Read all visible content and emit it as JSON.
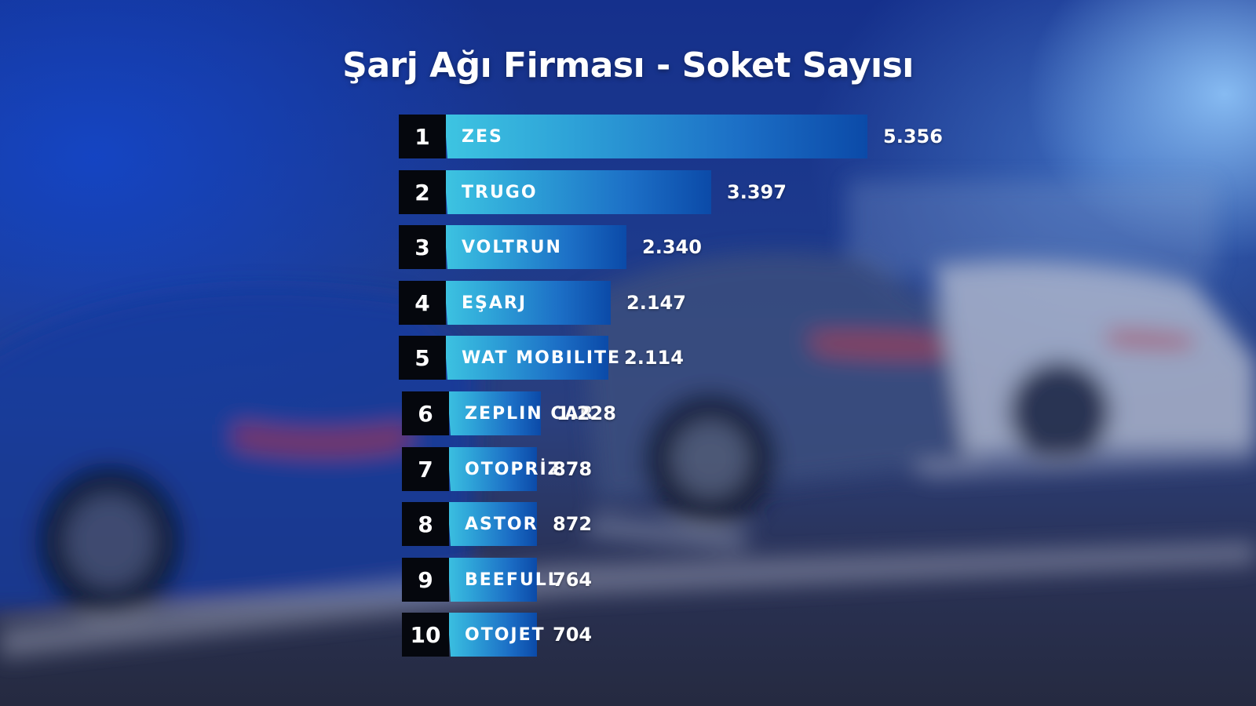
{
  "title": "Şarj Ağı Firması - Soket Sayısı",
  "colors": {
    "bar_start": "#3ec6e2",
    "bar_end": "#0b4aa8",
    "rank_bg": "#05070d",
    "text": "#ffffff"
  },
  "chart_data": {
    "type": "bar",
    "orientation": "horizontal",
    "title": "Şarj Ağı Firması - Soket Sayısı",
    "ranks": [
      "1",
      "2",
      "3",
      "4",
      "5",
      "6",
      "7",
      "8",
      "9",
      "10"
    ],
    "categories": [
      "ZES",
      "TRUGO",
      "VOLTRUN",
      "EŞARJ",
      "WAT MOBILITE",
      "ZEPLIN CAR",
      "OTOPRİZ",
      "ASTOR",
      "BEEFULL",
      "OTOJET"
    ],
    "values": [
      5356,
      3397,
      2340,
      2147,
      2114,
      1228,
      878,
      872,
      764,
      704
    ],
    "value_labels": [
      "5.356",
      "3.397",
      "2.340",
      "2.147",
      "2.114",
      "1.228",
      "878",
      "872",
      "764",
      "704"
    ],
    "grid": false,
    "legend": "none"
  }
}
